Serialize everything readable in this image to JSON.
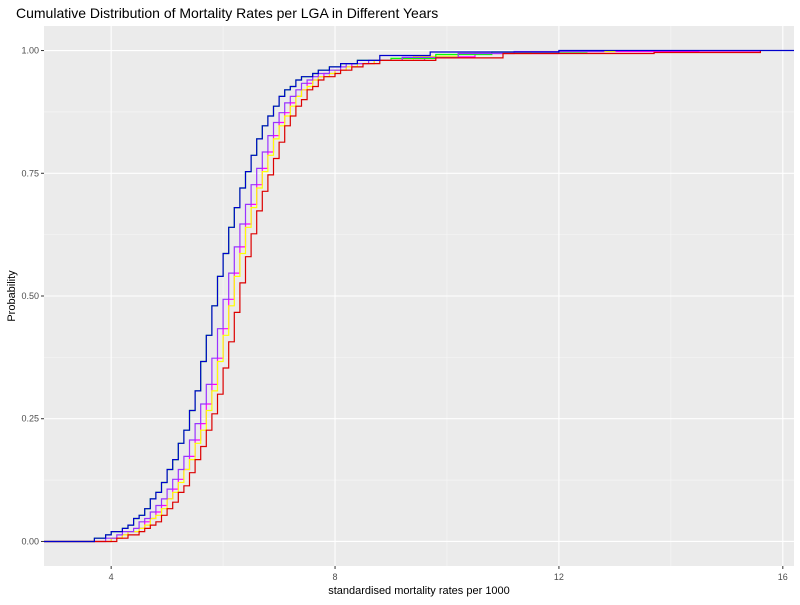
{
  "chart_data": {
    "type": "line",
    "title": "Cumulative Distribution of Mortality Rates per LGA in Different Years",
    "xlabel": "standardised mortality rates per 1000",
    "ylabel": "Probability",
    "xlim": [
      2.8,
      16.2
    ],
    "ylim": [
      -0.05,
      1.05
    ],
    "x_ticks": [
      4,
      8,
      12,
      16
    ],
    "x_tick_labels": [
      "4",
      "8",
      "12",
      "16"
    ],
    "y_ticks": [
      0,
      0.25,
      0.5,
      0.75,
      1.0
    ],
    "y_tick_labels": [
      "0.00",
      "0.25",
      "0.50",
      "0.75",
      "1.00"
    ],
    "grid": true,
    "legend": "none",
    "background": "#ebebeb",
    "series": [
      {
        "color": "#ff00ff",
        "shift": 0.28,
        "tail": [
          [
            9.6,
            0.987
          ],
          [
            10.5,
            0.994
          ],
          [
            12.0,
            0.998
          ],
          [
            14.5,
            0.999
          ],
          [
            15.6,
            1.0
          ]
        ]
      },
      {
        "color": "#ffff00",
        "shift": 0.3,
        "tail": [
          [
            9.4,
            0.988
          ],
          [
            10.2,
            0.994
          ],
          [
            11.5,
            0.998
          ],
          [
            13.0,
            1.0
          ]
        ]
      },
      {
        "color": "#00ff00",
        "shift": 0.0,
        "tail": [
          [
            9.0,
            0.984
          ],
          [
            9.8,
            0.992
          ],
          [
            10.8,
            0.997
          ],
          [
            12.5,
            1.0
          ]
        ]
      },
      {
        "color": "#9933ff",
        "shift": 0.18,
        "tail": [
          [
            9.2,
            0.986
          ],
          [
            10.2,
            0.994
          ],
          [
            11.2,
            0.998
          ],
          [
            12.8,
            1.0
          ]
        ]
      },
      {
        "color": "#dd0000",
        "shift": 0.42,
        "tail": [
          [
            9.8,
            0.985
          ],
          [
            11.0,
            0.994
          ],
          [
            13.7,
            0.996
          ],
          [
            15.6,
            1.0
          ]
        ]
      },
      {
        "color": "#0000cc",
        "shift": 0.0,
        "tail": [
          [
            8.8,
            0.99
          ],
          [
            9.7,
            0.997
          ],
          [
            12.0,
            1.0
          ],
          [
            16.2,
            1.0
          ]
        ]
      }
    ],
    "base_curve": [
      [
        2.8,
        0.0
      ],
      [
        3.5,
        0.0
      ],
      [
        3.7,
        0.005
      ],
      [
        3.9,
        0.012
      ],
      [
        4.1,
        0.022
      ],
      [
        4.3,
        0.035
      ],
      [
        4.5,
        0.055
      ],
      [
        4.7,
        0.085
      ],
      [
        4.9,
        0.12
      ],
      [
        5.1,
        0.17
      ],
      [
        5.3,
        0.23
      ],
      [
        5.5,
        0.31
      ],
      [
        5.7,
        0.42
      ],
      [
        5.9,
        0.54
      ],
      [
        6.1,
        0.64
      ],
      [
        6.3,
        0.72
      ],
      [
        6.5,
        0.79
      ],
      [
        6.7,
        0.85
      ],
      [
        6.9,
        0.89
      ],
      [
        7.1,
        0.92
      ],
      [
        7.3,
        0.94
      ],
      [
        7.6,
        0.955
      ],
      [
        8.0,
        0.97
      ],
      [
        8.5,
        0.98
      ]
    ]
  }
}
